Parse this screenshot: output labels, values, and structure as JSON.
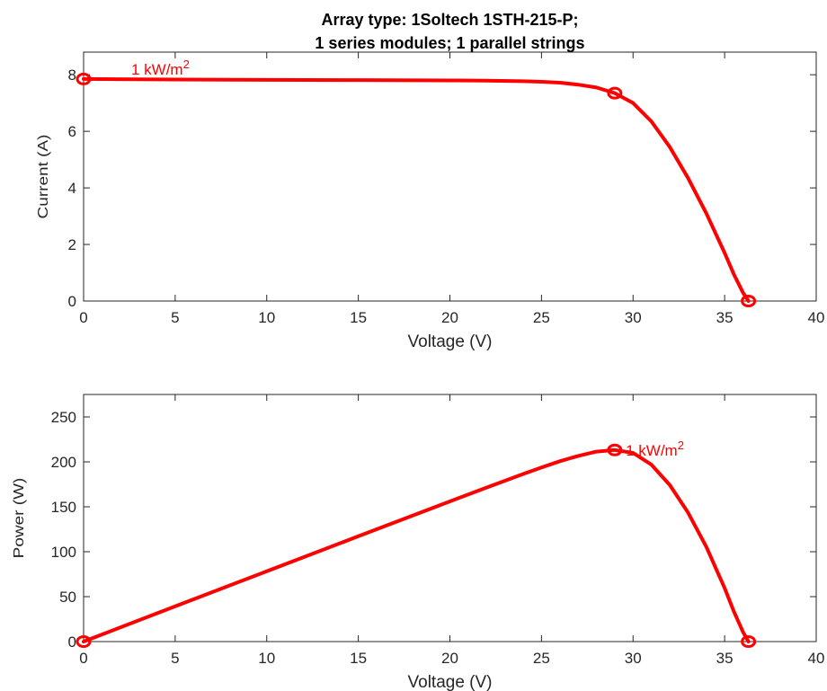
{
  "chart_data": [
    {
      "type": "line",
      "title": [
        "Array type: 1Soltech 1STH-215-P;",
        "1 series modules; 1 parallel strings"
      ],
      "xlabel": "Voltage (V)",
      "ylabel": "Current (A)",
      "xlim": [
        0,
        40
      ],
      "ylim": [
        0,
        8.8
      ],
      "xticks": [
        0,
        5,
        10,
        15,
        20,
        25,
        30,
        35,
        40
      ],
      "yticks": [
        0,
        2,
        4,
        6,
        8
      ],
      "grid": false,
      "series": [
        {
          "color": "#ff0000",
          "x": [
            0,
            5,
            10,
            15,
            20,
            22,
            24,
            25,
            26,
            27,
            28,
            29,
            30,
            31,
            32,
            33,
            34,
            35,
            35.5,
            36,
            36.3
          ],
          "y": [
            7.85,
            7.83,
            7.82,
            7.81,
            7.8,
            7.79,
            7.77,
            7.75,
            7.72,
            7.65,
            7.55,
            7.35,
            7.0,
            6.35,
            5.45,
            4.35,
            3.1,
            1.7,
            0.95,
            0.3,
            0
          ]
        }
      ],
      "markers": [
        {
          "x": 0,
          "y": 7.85
        },
        {
          "x": 29,
          "y": 7.35
        },
        {
          "x": 36.3,
          "y": 0
        }
      ],
      "annotations": [
        {
          "text": "1 kW/m",
          "superscript": "2",
          "x": 2.6,
          "y": 8.0,
          "color": "#ff0000"
        }
      ]
    },
    {
      "type": "line",
      "xlabel": "Voltage (V)",
      "ylabel": "Power (W)",
      "xlim": [
        0,
        40
      ],
      "ylim": [
        0,
        275
      ],
      "xticks": [
        0,
        5,
        10,
        15,
        20,
        25,
        30,
        35,
        40
      ],
      "yticks": [
        0,
        50,
        100,
        150,
        200,
        250
      ],
      "grid": false,
      "series": [
        {
          "color": "#ff0000",
          "x": [
            0,
            5,
            10,
            15,
            20,
            22,
            24,
            25,
            26,
            27,
            28,
            29,
            30,
            31,
            32,
            33,
            34,
            35,
            35.5,
            36,
            36.3
          ],
          "y": [
            0,
            39.2,
            78.2,
            117.2,
            156.0,
            171.4,
            186.5,
            193.8,
            200.7,
            206.6,
            211.4,
            213.2,
            210.0,
            196.9,
            174.4,
            143.6,
            105.4,
            59.5,
            33.7,
            10.8,
            0
          ]
        }
      ],
      "markers": [
        {
          "x": 0,
          "y": 0
        },
        {
          "x": 29,
          "y": 213.2
        },
        {
          "x": 36.3,
          "y": 0
        }
      ],
      "annotations": [
        {
          "text": "1 kW/m",
          "superscript": "2",
          "x": 29.6,
          "y": 207,
          "color": "#ff0000"
        }
      ]
    }
  ]
}
